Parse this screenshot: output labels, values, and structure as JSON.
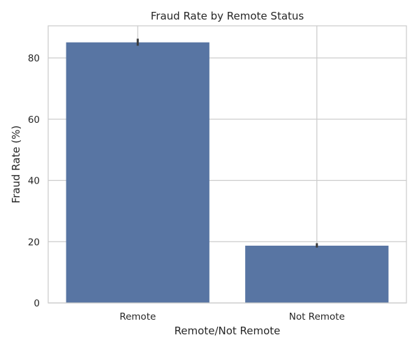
{
  "chart_data": {
    "type": "bar",
    "title": "Fraud Rate by Remote Status",
    "xlabel": "Remote/Not Remote",
    "ylabel": "Fraud Rate (%)",
    "categories": [
      "Remote",
      "Not Remote"
    ],
    "values": [
      85.1,
      18.7
    ],
    "error_low": [
      84.0,
      18.1
    ],
    "error_high": [
      86.3,
      19.5
    ],
    "ylim": [
      0,
      90.5
    ],
    "yticks": [
      0,
      20,
      40,
      60,
      80
    ],
    "ytick_labels": [
      "0",
      "20",
      "40",
      "60",
      "80"
    ],
    "grid": true,
    "colors": {
      "bar": "#5875a3",
      "grid": "#cccccc",
      "error_bar": "#3b3b3b"
    }
  }
}
